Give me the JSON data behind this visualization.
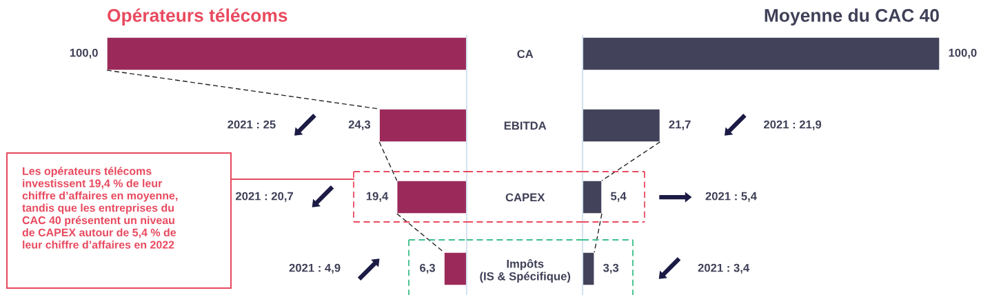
{
  "chart_data": [
    {
      "type": "bar",
      "orientation": "horizontal",
      "title": "Opérateurs télécoms",
      "categories": [
        "CA",
        "EBITDA",
        "CAPEX",
        "Impôts\n(IS & Spécifique)"
      ],
      "values": [
        100,
        24.3,
        19.4,
        6.3
      ],
      "value_labels": [
        "100,0",
        "24,3",
        "19,4",
        "6,3"
      ],
      "color": "#9b2a5a",
      "xlim": [
        100,
        0
      ],
      "tick_labels": "y",
      "annotations": [
        "2021 : 25",
        "2021 : 20,7",
        "2021 : 4,9",
        "Les opérateurs télécoms\ninvestissent 19,4 % de leur\nchiffre d’affaires en moyenne,\ntandis que les entreprises du\nCAC 40 présentent un niveau\nde CAPEX autour de 5,4 % de\nleur chiffre d’affaires en 2022"
      ]
    },
    {
      "type": "bar",
      "orientation": "horizontal",
      "title": "Moyenne du CAC 40",
      "categories": [
        null,
        null,
        null,
        null
      ],
      "values": [
        100,
        21.7,
        5.4,
        3.3
      ],
      "value_labels": [
        "100,0",
        "21,7",
        "5,4",
        "3,3"
      ],
      "color": "#42435a",
      "xlim": [
        0,
        100
      ],
      "tick_labels": false,
      "annotations": [
        "2021 : 21,9",
        "2021 : 5,4",
        "2021 : 3,4"
      ]
    }
  ]
}
